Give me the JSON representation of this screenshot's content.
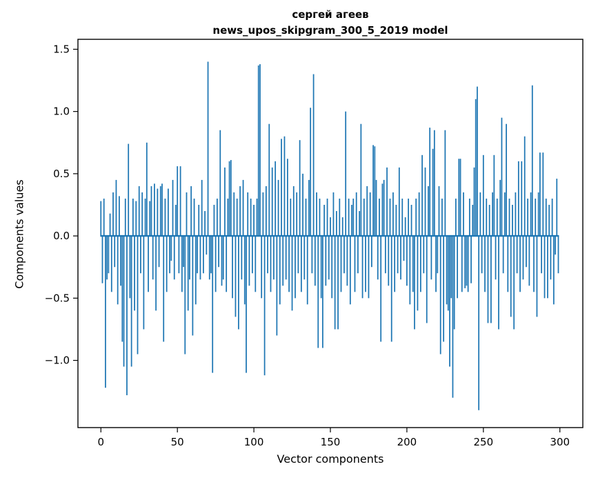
{
  "chart_data": {
    "type": "bar",
    "title": "сергей агеев",
    "subtitle": "news_upos_skipgram_300_5_2019 model",
    "xlabel": "Vector components",
    "ylabel": "Components values",
    "bar_color": "#1f77b4",
    "spine_color": "#000000",
    "xlim": [
      -15,
      315
    ],
    "ylim": [
      -1.54,
      1.58
    ],
    "xticks": [
      0,
      50,
      100,
      150,
      200,
      250,
      300
    ],
    "xtick_labels": [
      "0",
      "50",
      "100",
      "150",
      "200",
      "250",
      "300"
    ],
    "yticks": [
      -1.0,
      -0.5,
      0.0,
      0.5,
      1.0,
      1.5
    ],
    "ytick_labels": [
      "−1.0",
      "−0.5",
      "0.0",
      "0.5",
      "1.0",
      "1.5"
    ],
    "legend": "none",
    "grid": false,
    "x_start": 0,
    "values": [
      0.28,
      -0.38,
      0.3,
      -1.22,
      -0.35,
      -0.3,
      0.18,
      -0.45,
      0.35,
      -0.25,
      0.45,
      -0.55,
      0.32,
      -0.4,
      -0.85,
      -1.05,
      0.3,
      -1.28,
      0.74,
      -0.5,
      -1.05,
      0.3,
      -0.6,
      0.28,
      -0.95,
      0.4,
      -0.3,
      0.35,
      -0.75,
      0.3,
      0.75,
      -0.45,
      0.28,
      0.4,
      -0.35,
      0.42,
      -0.6,
      0.38,
      -0.25,
      0.4,
      0.42,
      -0.85,
      0.3,
      -0.45,
      0.38,
      -0.3,
      -0.2,
      0.45,
      -0.35,
      0.25,
      0.56,
      -0.3,
      0.56,
      -0.45,
      -0.25,
      -0.95,
      0.35,
      -0.6,
      -0.35,
      0.4,
      -0.8,
      0.3,
      -0.55,
      -0.3,
      0.25,
      -0.35,
      0.45,
      -0.3,
      0.2,
      -0.15,
      1.4,
      -0.35,
      -0.3,
      -1.1,
      0.25,
      -0.45,
      0.3,
      -0.25,
      0.85,
      -0.4,
      -0.35,
      0.55,
      -0.45,
      0.3,
      0.6,
      0.61,
      -0.5,
      0.35,
      -0.65,
      0.3,
      -0.75,
      0.4,
      -0.35,
      0.45,
      -0.55,
      -1.1,
      0.35,
      -0.4,
      0.3,
      -0.3,
      0.25,
      -0.45,
      0.3,
      1.37,
      1.38,
      -0.5,
      0.35,
      -1.12,
      0.4,
      -0.3,
      0.9,
      -0.45,
      0.55,
      -0.35,
      0.6,
      -0.8,
      0.45,
      -0.55,
      0.78,
      -0.4,
      0.8,
      -0.35,
      0.62,
      -0.45,
      0.3,
      -0.6,
      0.4,
      -0.5,
      0.35,
      -0.3,
      0.77,
      -0.45,
      0.5,
      -0.35,
      0.3,
      -0.55,
      0.45,
      1.03,
      -0.3,
      1.3,
      -0.4,
      0.35,
      -0.9,
      0.3,
      -0.5,
      -0.9,
      0.25,
      -0.4,
      0.3,
      -0.35,
      0.15,
      -0.5,
      0.35,
      -0.75,
      0.2,
      -0.75,
      0.3,
      -0.45,
      0.15,
      -0.3,
      1.0,
      -0.4,
      0.3,
      -0.55,
      0.25,
      0.3,
      -0.45,
      0.35,
      -0.3,
      0.2,
      0.9,
      -0.5,
      0.3,
      -0.45,
      0.4,
      -0.5,
      0.35,
      -0.25,
      0.73,
      0.72,
      0.45,
      -0.35,
      0.3,
      -0.85,
      0.42,
      0.45,
      -0.3,
      0.55,
      -0.4,
      0.3,
      -0.85,
      0.35,
      -0.45,
      0.25,
      -0.3,
      0.55,
      -0.35,
      0.3,
      -0.2,
      0.15,
      -0.4,
      0.3,
      -0.55,
      0.25,
      -0.45,
      -0.75,
      0.3,
      -0.6,
      0.35,
      -0.45,
      0.65,
      -0.3,
      0.55,
      -0.7,
      0.4,
      0.87,
      -0.35,
      0.7,
      0.85,
      -0.45,
      -0.3,
      0.4,
      -0.95,
      0.3,
      -0.85,
      0.85,
      -0.55,
      -0.6,
      -1.05,
      -0.5,
      -1.3,
      -0.75,
      0.3,
      -0.5,
      0.62,
      0.62,
      -0.45,
      0.35,
      -0.42,
      -0.4,
      -0.45,
      0.3,
      -0.38,
      0.25,
      0.55,
      1.1,
      1.2,
      -1.4,
      0.35,
      -0.3,
      0.65,
      -0.45,
      0.3,
      -0.7,
      0.25,
      -0.7,
      0.35,
      0.65,
      -0.35,
      0.3,
      -0.75,
      0.45,
      0.95,
      -0.3,
      0.35,
      0.9,
      -0.45,
      0.3,
      -0.65,
      0.25,
      -0.75,
      0.35,
      -0.3,
      0.6,
      -0.45,
      0.6,
      -0.35,
      0.8,
      -0.25,
      0.3,
      -0.4,
      0.35,
      1.21,
      -0.45,
      0.3,
      -0.65,
      0.35,
      0.67,
      -0.3,
      0.67,
      -0.5,
      0.3,
      -0.5,
      0.25,
      -0.35,
      0.3,
      -0.55,
      -0.15,
      0.46,
      -0.3
    ]
  }
}
